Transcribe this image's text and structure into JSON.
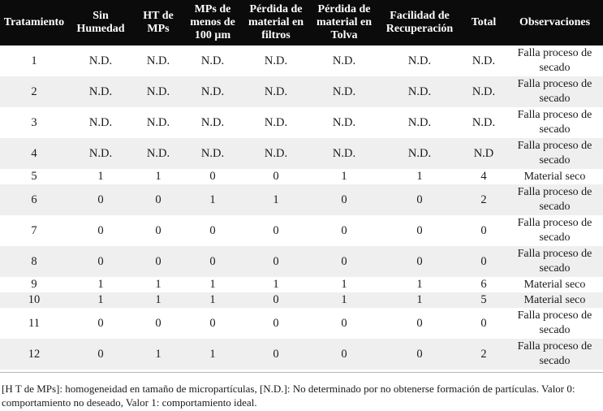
{
  "table": {
    "headers": [
      "Tratamiento",
      "Sin Humedad",
      "HT de MPs",
      "MPs de menos de 100 µm",
      "Pérdida de material en filtros",
      "Pérdida de material en Tolva",
      "Facilidad de Recuperación",
      "Total",
      "Observaciones"
    ],
    "rows": [
      [
        "1",
        "N.D.",
        "N.D.",
        "N.D.",
        "N.D.",
        "N.D.",
        "N.D.",
        "N.D.",
        "Falla proceso de secado"
      ],
      [
        "2",
        "N.D.",
        "N.D.",
        "N.D.",
        "N.D.",
        "N.D.",
        "N.D.",
        "N.D.",
        "Falla proceso de secado"
      ],
      [
        "3",
        "N.D.",
        "N.D.",
        "N.D.",
        "N.D.",
        "N.D.",
        "N.D.",
        "N.D.",
        "Falla proceso de secado"
      ],
      [
        "4",
        "N.D.",
        "N.D.",
        "N.D.",
        "N.D.",
        "N.D.",
        "N.D.",
        "N.D",
        "Falla proceso de secado"
      ],
      [
        "5",
        "1",
        "1",
        "0",
        "0",
        "1",
        "1",
        "4",
        "Material seco"
      ],
      [
        "6",
        "0",
        "0",
        "1",
        "1",
        "0",
        "0",
        "2",
        "Falla proceso de secado"
      ],
      [
        "7",
        "0",
        "0",
        "0",
        "0",
        "0",
        "0",
        "0",
        "Falla proceso de secado"
      ],
      [
        "8",
        "0",
        "0",
        "0",
        "0",
        "0",
        "0",
        "0",
        "Falla proceso de secado"
      ],
      [
        "9",
        "1",
        "1",
        "1",
        "1",
        "1",
        "1",
        "6",
        "Material seco"
      ],
      [
        "10",
        "1",
        "1",
        "1",
        "0",
        "1",
        "1",
        "5",
        "Material seco"
      ],
      [
        "11",
        "0",
        "0",
        "0",
        "0",
        "0",
        "0",
        "0",
        "Falla proceso de secado"
      ],
      [
        "12",
        "0",
        "1",
        "1",
        "0",
        "0",
        "0",
        "2",
        "Falla proceso de secado"
      ]
    ]
  },
  "footnote": "[H T de MPs]: homogeneidad en tamaño de micropartículas, [N.D.]: No determinado por no obtenerse formación de partículas. Valor 0: comportamiento no deseado, Valor 1: comportamiento ideal."
}
